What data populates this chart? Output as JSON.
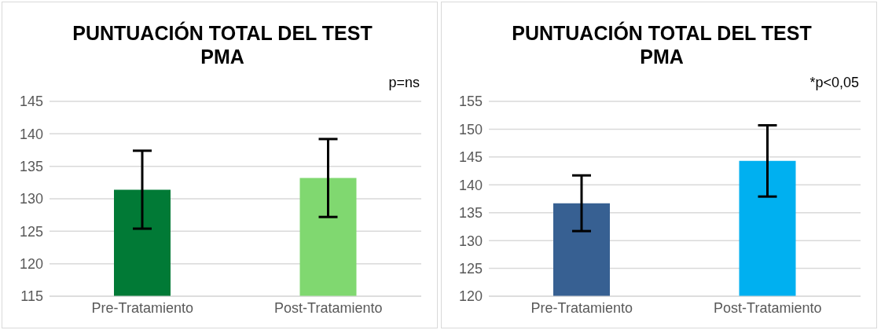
{
  "chart_data": [
    {
      "type": "bar",
      "title": "PUNTUACIÓN TOTAL DEL TEST PMA",
      "annotations": [
        "p=ns"
      ],
      "categories": [
        "Pre-Tratamiento",
        "Post-Tratamiento"
      ],
      "values": [
        131.4,
        133.2
      ],
      "errors": [
        6,
        6
      ],
      "colors": [
        "#017a36",
        "#80d870"
      ],
      "ylim": [
        115,
        145
      ],
      "yticks": [
        115,
        120,
        125,
        130,
        135,
        140,
        145
      ],
      "grid": "y"
    },
    {
      "type": "bar",
      "title": "PUNTUACIÓN TOTAL DEL TEST PMA",
      "annotations": [
        "*p<0,05"
      ],
      "categories": [
        "Pre-Tratamiento",
        "Post-Tratamiento"
      ],
      "values": [
        136.7,
        144.3
      ],
      "errors": [
        5,
        6.4
      ],
      "colors": [
        "#376092",
        "#00b0f0"
      ],
      "ylim": [
        120,
        155
      ],
      "yticks": [
        120,
        125,
        130,
        135,
        140,
        145,
        150,
        155
      ],
      "grid": "y"
    }
  ]
}
